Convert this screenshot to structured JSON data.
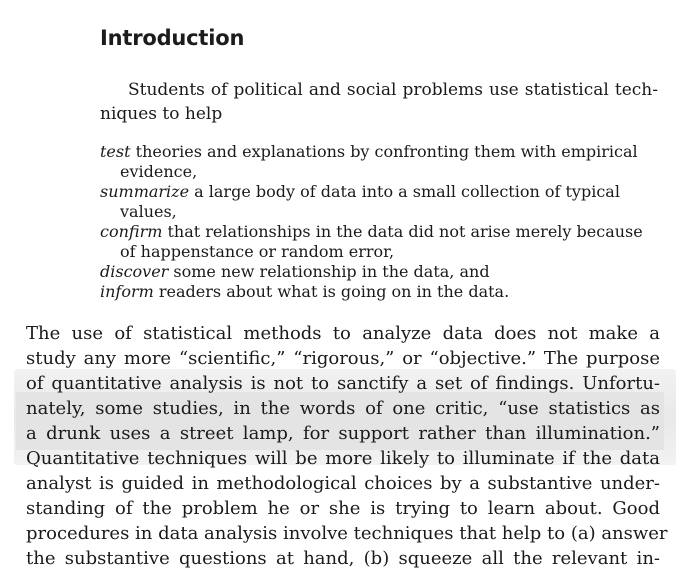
{
  "heading": "Introduction",
  "intro": {
    "line1": "Students of political and social problems use statistical tech-",
    "line2": "niques to help"
  },
  "list": [
    {
      "term": "test",
      "rest": " theories and explanations by confronting them with empirical",
      "cont": "evidence,"
    },
    {
      "term": "summarize",
      "rest": " a large body of data into a small collection of typical",
      "cont": "values,"
    },
    {
      "term": "confirm",
      "rest": " that relationships in the data did not arise merely because",
      "cont": "of happenstance or random error,"
    },
    {
      "term": "discover",
      "rest": " some new relationship in the data, and"
    },
    {
      "term": "inform",
      "rest": " readers about what is going on in the data."
    }
  ],
  "paragraph": [
    "The use of statistical methods to analyze data does not make a",
    "study any more “scientific,” “rigorous,” or “objective.” The purpose",
    "of quantitative analysis is not to sanctify a set of findings. Unfortu-",
    "nately, some studies, in the words of one critic, “use statistics as",
    "a drunk uses a street lamp, for support rather than illumination.”",
    "Quantitative techniques will be more likely to illuminate if the data",
    "analyst is guided in methodological choices by a substantive under-",
    "standing of the problem he or she is trying to learn about. Good",
    "procedures in data analysis involve techniques that help to (a) answer",
    "the substantive questions at hand, (b) squeeze all the relevant in-"
  ]
}
